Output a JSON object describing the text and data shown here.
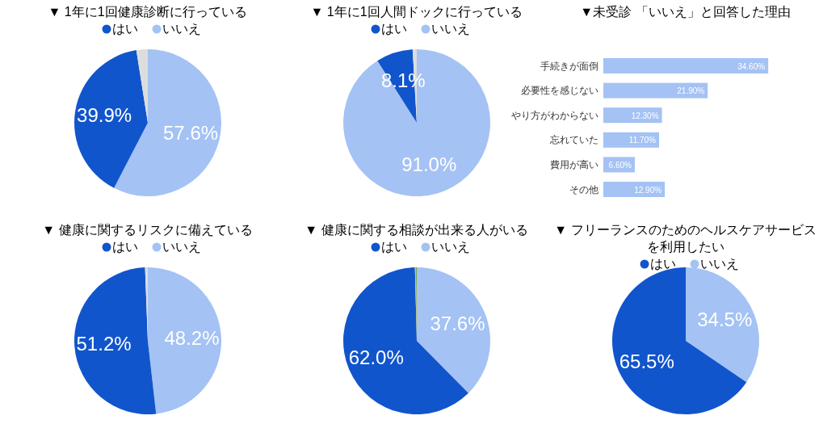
{
  "chart_data": [
    {
      "type": "pie",
      "title": "▼ 1年に1回健康診断に行っている",
      "legend": "top",
      "categories": [
        "いいえ",
        "はい",
        null
      ],
      "values": [
        57.6,
        39.9,
        2.5
      ],
      "colors": [
        "#a4c2f4",
        "#1155cc",
        "#dddddd"
      ],
      "value_labels": [
        "57.6%",
        "39.9%",
        null
      ]
    },
    {
      "type": "pie",
      "title": "▼ 1年に1回人間ドックに行っている",
      "legend": "top",
      "categories": [
        "いいえ",
        "はい",
        null
      ],
      "values": [
        91.0,
        8.1,
        0.9
      ],
      "colors": [
        "#a4c2f4",
        "#1155cc",
        "#dddddd"
      ],
      "value_labels": [
        "91.0%",
        "8.1%",
        null
      ]
    },
    {
      "type": "bar",
      "orientation": "horizontal",
      "title": "▼未受診 「いいえ」と回答した理由",
      "categories": [
        "手続きが面倒",
        "必要性を感じない",
        "やり方がわからない",
        "忘れていた",
        "費用が高い",
        "その他"
      ],
      "values": [
        34.6,
        21.9,
        12.3,
        11.7,
        6.6,
        12.9
      ],
      "color": "#a4c2f4",
      "value_labels": [
        "34.60%",
        "21.90%",
        "12.30%",
        "11.70%",
        "6.60%",
        "12.90%"
      ]
    },
    {
      "type": "pie",
      "title": "▼ 健康に関するリスクに備えている",
      "legend": "top",
      "categories": [
        "いいえ",
        "はい",
        null
      ],
      "values": [
        48.2,
        51.2,
        0.6
      ],
      "colors": [
        "#a4c2f4",
        "#1155cc",
        "#dddddd"
      ],
      "value_labels": [
        "48.2%",
        "51.2%",
        null
      ]
    },
    {
      "type": "pie",
      "title": "▼ 健康に関する相談が出来る人がいる",
      "legend": "top",
      "categories": [
        "いいえ",
        "はい",
        null,
        null
      ],
      "values": [
        37.6,
        62.0,
        0.2,
        0.2
      ],
      "colors": [
        "#a4c2f4",
        "#1155cc",
        "#f1c232",
        "#6aa84f"
      ],
      "value_labels": [
        "37.6%",
        "62.0%",
        null,
        null
      ]
    },
    {
      "type": "pie",
      "title": "▼ フリーランスのためのヘルスケアサービスを利用したい",
      "legend": "top",
      "categories": [
        "いいえ",
        "はい"
      ],
      "values": [
        34.5,
        65.5
      ],
      "colors": [
        "#a4c2f4",
        "#1155cc"
      ],
      "value_labels": [
        "34.5%",
        "65.5%"
      ]
    }
  ]
}
